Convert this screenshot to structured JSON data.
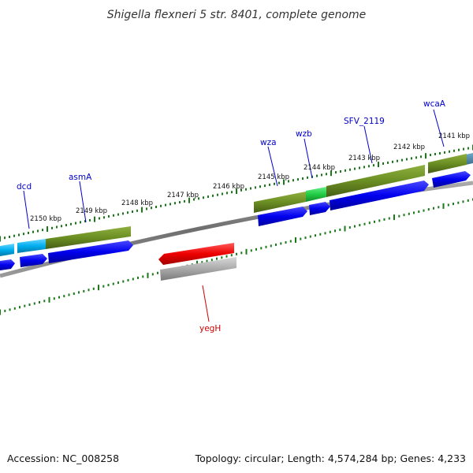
{
  "header": {
    "title": "Shigella flexneri 5 str. 8401, complete genome"
  },
  "footer": {
    "accession": "Accession: NC_008258",
    "topology": "Topology: circular; Length: 4,574,284 bp; Genes: 4,233"
  },
  "colors": {
    "backbone": "#777777",
    "tick": "#1a7a1a",
    "gene_label": "#0000cc",
    "highlight_label": "#cc0000",
    "cds_blue": "#0000ee",
    "cds_olive": "#6b8e23",
    "cds_cyan": "#00aeef",
    "cds_green": "#22cc44",
    "cds_red": "#ee0000",
    "cds_gray": "#aaaaaa"
  },
  "scale_labels": [
    {
      "name": "kbp-2141",
      "text": "2141 kbp"
    },
    {
      "name": "kbp-2142",
      "text": "2142 kbp"
    },
    {
      "name": "kbp-2143",
      "text": "2143 kbp"
    },
    {
      "name": "kbp-2144",
      "text": "2144 kbp"
    },
    {
      "name": "kbp-2145",
      "text": "2145 kbp"
    },
    {
      "name": "kbp-2146",
      "text": "2146 kbp"
    },
    {
      "name": "kbp-2147",
      "text": "2147 kbp"
    },
    {
      "name": "kbp-2148",
      "text": "2148 kbp"
    },
    {
      "name": "kbp-2149",
      "text": "2149 kbp"
    },
    {
      "name": "kbp-2150",
      "text": "2150 kbp"
    }
  ],
  "gene_labels": [
    {
      "name": "gene-wcaA",
      "text": "wcaA"
    },
    {
      "name": "gene-SFV_2119",
      "text": "SFV_2119"
    },
    {
      "name": "gene-wzb",
      "text": "wzb"
    },
    {
      "name": "gene-wza",
      "text": "wza"
    },
    {
      "name": "gene-asmA",
      "text": "asmA"
    },
    {
      "name": "gene-dcd",
      "text": "dcd"
    },
    {
      "name": "gene-yegH",
      "text": "yegH"
    }
  ]
}
